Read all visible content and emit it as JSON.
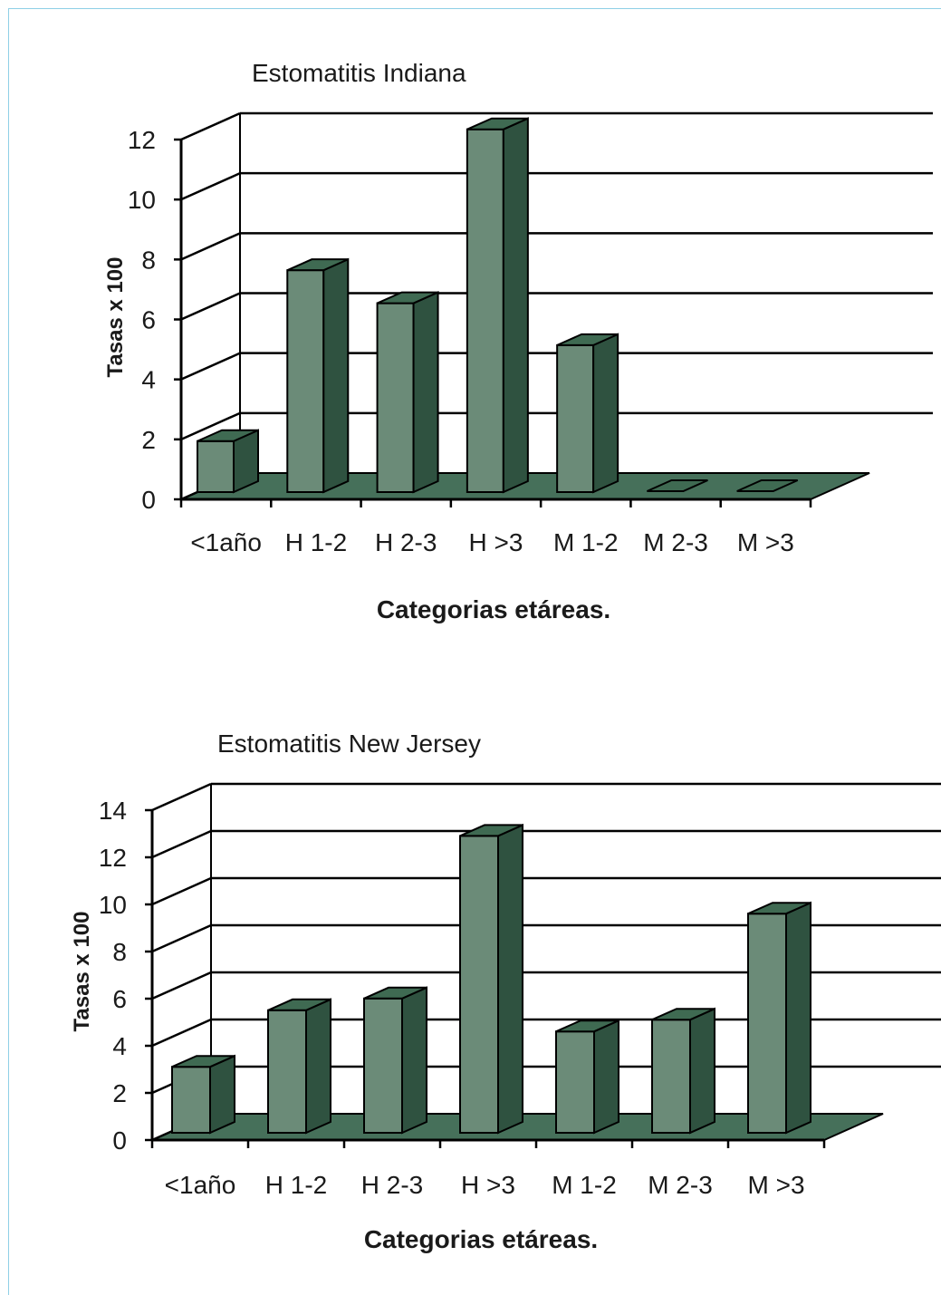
{
  "chart_data": [
    {
      "type": "bar",
      "title": "Estomatitis Indiana",
      "xlabel": "Categorias etáreas.",
      "ylabel": "Tasas x 100",
      "categories": [
        "<1año",
        "H 1-2",
        "H 2-3",
        "H >3",
        "M 1-2",
        "M 2-3",
        "M >3"
      ],
      "values": [
        1.7,
        7.4,
        6.3,
        12.1,
        4.9,
        0,
        0
      ],
      "ylim": [
        0,
        12
      ],
      "yticks": [
        0,
        2,
        4,
        6,
        8,
        10,
        12
      ],
      "grid": true,
      "style": "3d"
    },
    {
      "type": "bar",
      "title": "Estomatitis New Jersey",
      "xlabel": "Categorias etáreas.",
      "ylabel": "Tasas x 100",
      "categories": [
        "<1año",
        "H 1-2",
        "H 2-3",
        "H >3",
        "M 1-2",
        "M 2-3",
        "M >3"
      ],
      "values": [
        2.8,
        5.2,
        5.7,
        12.6,
        4.3,
        4.8,
        9.3
      ],
      "ylim": [
        0,
        14
      ],
      "yticks": [
        0,
        2,
        4,
        6,
        8,
        10,
        12,
        14
      ],
      "grid": true,
      "style": "3d"
    }
  ],
  "colors": {
    "bar_front": "#6b8b78",
    "bar_side": "#2f5240",
    "bar_top": "#3f6a52",
    "floor": "#46705a",
    "line": "#000000"
  }
}
